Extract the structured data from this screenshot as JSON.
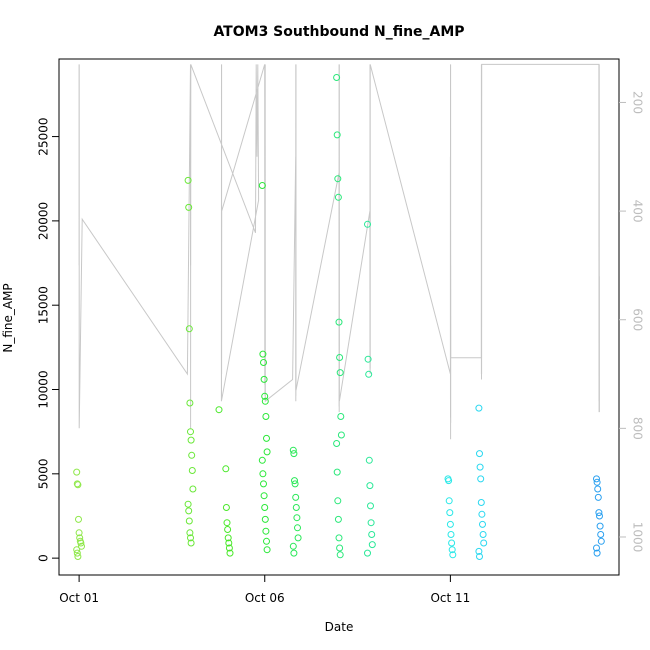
{
  "chart_data": {
    "type": "scatter",
    "title": "ATOM3 Southbound N_fine_AMP",
    "xlabel": "Date",
    "ylabel": "N_fine_AMP",
    "xlim": [
      "2020-09-30T11:00",
      "2020-10-15T13:00"
    ],
    "ylim": [
      -1000,
      29600
    ],
    "x_ticks": [
      {
        "at": "2020-10-01T00:00",
        "label": "Oct 01"
      },
      {
        "at": "2020-10-06T00:00",
        "label": "Oct 06"
      },
      {
        "at": "2020-10-11T00:00",
        "label": "Oct 11"
      }
    ],
    "y_ticks": [
      0,
      5000,
      10000,
      15000,
      20000,
      25000
    ],
    "y2_ticks": [
      200,
      400,
      600,
      800,
      1000
    ],
    "y2lim": [
      120,
      1070
    ],
    "y2_reversed": true,
    "grid": false,
    "legend": "none",
    "series": [
      {
        "color": "#c8c8c8",
        "kind": "line",
        "axis": "secondary",
        "note": "grey trace plotted against the right axis",
        "points": [
          [
            "2020-10-01T00:00",
            130
          ],
          [
            "2020-10-01T00:01",
            500
          ],
          [
            "2020-10-01T00:02",
            130
          ],
          [
            "2020-10-01T00:03",
            800
          ],
          [
            "2020-10-01T00:04",
            130
          ],
          [
            "2020-10-01T00:05",
            800
          ],
          [
            "2020-10-01T02:00",
            415
          ],
          [
            "2020-10-03T22:00",
            700
          ],
          [
            "2020-10-04T00:00",
            130
          ],
          [
            "2020-10-04T00:02",
            500
          ],
          [
            "2020-10-04T00:04",
            130
          ],
          [
            "2020-10-04T00:06",
            800
          ],
          [
            "2020-10-04T00:08",
            150
          ],
          [
            "2020-10-04T00:10",
            500
          ],
          [
            "2020-10-04T00:12",
            130
          ],
          [
            "2020-10-05T18:00",
            440
          ],
          [
            "2020-10-05T18:30",
            130
          ],
          [
            "2020-10-05T19:00",
            300
          ],
          [
            "2020-10-05T19:30",
            130
          ],
          [
            "2020-10-05T20:00",
            380
          ],
          [
            "2020-10-04T20:00",
            750
          ],
          [
            "2020-10-04T20:02",
            130
          ],
          [
            "2020-10-04T20:04",
            750
          ],
          [
            "2020-10-04T20:06",
            130
          ],
          [
            "2020-10-04T20:08",
            700
          ],
          [
            "2020-10-04T20:10",
            400
          ],
          [
            "2020-10-06T00:00",
            130
          ],
          [
            "2020-10-06T00:03",
            720
          ],
          [
            "2020-10-06T00:06",
            130
          ],
          [
            "2020-10-06T00:09",
            740
          ],
          [
            "2020-10-06T00:12",
            130
          ],
          [
            "2020-10-06T00:15",
            700
          ],
          [
            "2020-10-06T00:18",
            130
          ],
          [
            "2020-10-06T00:21",
            750
          ],
          [
            "2020-10-06T18:00",
            710
          ],
          [
            "2020-10-06T20:00",
            300
          ],
          [
            "2020-10-06T20:02",
            730
          ],
          [
            "2020-10-06T20:04",
            130
          ],
          [
            "2020-10-06T20:06",
            750
          ],
          [
            "2020-10-06T20:08",
            130
          ],
          [
            "2020-10-06T20:10",
            740
          ],
          [
            "2020-10-06T20:12",
            130
          ],
          [
            "2020-10-06T20:14",
            730
          ],
          [
            "2020-10-08T00:00",
            330
          ],
          [
            "2020-10-08T00:02",
            760
          ],
          [
            "2020-10-08T00:04",
            130
          ],
          [
            "2020-10-08T00:06",
            770
          ],
          [
            "2020-10-08T00:08",
            130
          ],
          [
            "2020-10-08T00:10",
            740
          ],
          [
            "2020-10-08T00:12",
            130
          ],
          [
            "2020-10-08T00:14",
            750
          ],
          [
            "2020-10-08T20:00",
            400
          ],
          [
            "2020-10-08T20:02",
            690
          ],
          [
            "2020-10-08T20:04",
            130
          ],
          [
            "2020-10-08T20:06",
            700
          ],
          [
            "2020-10-08T20:08",
            130
          ],
          [
            "2020-10-08T20:10",
            690
          ],
          [
            "2020-10-08T20:12",
            130
          ],
          [
            "2020-10-11T00:00",
            700
          ],
          [
            "2020-10-11T00:02",
            300
          ],
          [
            "2020-10-11T00:04",
            780
          ],
          [
            "2020-10-11T00:06",
            130
          ],
          [
            "2020-10-11T00:08",
            820
          ],
          [
            "2020-10-11T00:10",
            130
          ],
          [
            "2020-10-11T00:12",
            790
          ],
          [
            "2020-10-11T00:14",
            500
          ],
          [
            "2020-10-11T00:16",
            670
          ],
          [
            "2020-10-11T20:00",
            670
          ],
          [
            "2020-10-11T20:02",
            130
          ],
          [
            "2020-10-11T20:04",
            700
          ],
          [
            "2020-10-11T20:06",
            130
          ],
          [
            "2020-10-11T20:08",
            710
          ],
          [
            "2020-10-11T20:10",
            130
          ],
          [
            "2020-10-11T20:12",
            700
          ],
          [
            "2020-10-11T20:14",
            130
          ],
          [
            "2020-10-15T00:00",
            130
          ],
          [
            "2020-10-15T00:03",
            750
          ],
          [
            "2020-10-15T00:06",
            130
          ],
          [
            "2020-10-15T00:09",
            770
          ],
          [
            "2020-10-15T00:12",
            130
          ],
          [
            "2020-10-15T00:15",
            770
          ],
          [
            "2020-10-15T00:18",
            520
          ],
          [
            "2020-10-15T00:21",
            770
          ]
        ]
      },
      {
        "color": "#8fe84a",
        "kind": "points",
        "points": [
          [
            "2020-10-01T00:00",
            5100
          ],
          [
            "2020-10-01T00:00",
            4400
          ],
          [
            "2020-10-01T00:00",
            4350
          ],
          [
            "2020-10-01T00:00",
            2300
          ],
          [
            "2020-10-01T00:00",
            1500
          ],
          [
            "2020-10-01T00:00",
            1200
          ],
          [
            "2020-10-01T00:00",
            1000
          ],
          [
            "2020-10-01T00:00",
            900
          ],
          [
            "2020-10-01T00:00",
            700
          ],
          [
            "2020-10-01T00:00",
            500
          ],
          [
            "2020-10-01T00:00",
            300
          ],
          [
            "2020-10-01T00:00",
            100
          ]
        ]
      },
      {
        "color": "#6ae838",
        "kind": "points",
        "points": [
          [
            "2020-10-04T00:00",
            22400
          ],
          [
            "2020-10-04T00:00",
            20800
          ],
          [
            "2020-10-04T00:00",
            13600
          ],
          [
            "2020-10-04T00:00",
            9200
          ],
          [
            "2020-10-04T00:00",
            7500
          ],
          [
            "2020-10-04T00:00",
            7000
          ],
          [
            "2020-10-04T00:00",
            6100
          ],
          [
            "2020-10-04T00:00",
            5200
          ],
          [
            "2020-10-04T00:00",
            4100
          ],
          [
            "2020-10-04T00:00",
            3200
          ],
          [
            "2020-10-04T00:00",
            2800
          ],
          [
            "2020-10-04T00:00",
            2200
          ],
          [
            "2020-10-04T00:00",
            1500
          ],
          [
            "2020-10-04T00:00",
            1200
          ],
          [
            "2020-10-04T00:00",
            900
          ]
        ]
      },
      {
        "color": "#4ae82a",
        "kind": "points",
        "points": [
          [
            "2020-10-04T20:00",
            8800
          ],
          [
            "2020-10-05T00:00",
            5300
          ],
          [
            "2020-10-05T00:00",
            3000
          ],
          [
            "2020-10-05T00:00",
            2100
          ],
          [
            "2020-10-05T00:00",
            1700
          ],
          [
            "2020-10-05T00:00",
            1200
          ],
          [
            "2020-10-05T00:00",
            900
          ],
          [
            "2020-10-05T00:00",
            600
          ],
          [
            "2020-10-05T00:00",
            300
          ]
        ]
      },
      {
        "color": "#2ae838",
        "kind": "points",
        "points": [
          [
            "2020-10-06T00:00",
            22100
          ],
          [
            "2020-10-06T00:00",
            12100
          ],
          [
            "2020-10-06T00:00",
            11600
          ],
          [
            "2020-10-06T00:00",
            10600
          ],
          [
            "2020-10-06T00:00",
            9600
          ],
          [
            "2020-10-06T00:00",
            9300
          ],
          [
            "2020-10-06T00:00",
            8400
          ],
          [
            "2020-10-06T00:00",
            7100
          ],
          [
            "2020-10-06T00:00",
            6300
          ],
          [
            "2020-10-06T00:00",
            5800
          ],
          [
            "2020-10-06T00:00",
            5000
          ],
          [
            "2020-10-06T00:00",
            4400
          ],
          [
            "2020-10-06T00:00",
            3700
          ],
          [
            "2020-10-06T00:00",
            3000
          ],
          [
            "2020-10-06T00:00",
            2300
          ],
          [
            "2020-10-06T00:00",
            1600
          ],
          [
            "2020-10-06T00:00",
            1000
          ],
          [
            "2020-10-06T00:00",
            500
          ]
        ]
      },
      {
        "color": "#2ae858",
        "kind": "points",
        "points": [
          [
            "2020-10-06T20:00",
            6400
          ],
          [
            "2020-10-06T20:00",
            6200
          ],
          [
            "2020-10-06T20:00",
            4600
          ],
          [
            "2020-10-06T20:00",
            4400
          ],
          [
            "2020-10-06T20:00",
            3600
          ],
          [
            "2020-10-06T20:00",
            3000
          ],
          [
            "2020-10-06T20:00",
            2400
          ],
          [
            "2020-10-06T20:00",
            1800
          ],
          [
            "2020-10-06T20:00",
            1200
          ],
          [
            "2020-10-06T20:00",
            700
          ],
          [
            "2020-10-06T20:00",
            300
          ]
        ]
      },
      {
        "color": "#2ae87a",
        "kind": "points",
        "points": [
          [
            "2020-10-08T00:00",
            28500
          ],
          [
            "2020-10-08T00:00",
            25100
          ],
          [
            "2020-10-08T00:00",
            22500
          ],
          [
            "2020-10-08T00:00",
            21400
          ],
          [
            "2020-10-08T00:00",
            14000
          ],
          [
            "2020-10-08T00:00",
            11900
          ],
          [
            "2020-10-08T00:00",
            11000
          ],
          [
            "2020-10-08T00:00",
            8400
          ],
          [
            "2020-10-08T00:00",
            7300
          ],
          [
            "2020-10-08T00:00",
            6800
          ],
          [
            "2020-10-08T00:00",
            5100
          ],
          [
            "2020-10-08T00:00",
            3400
          ],
          [
            "2020-10-08T00:00",
            2300
          ],
          [
            "2020-10-08T00:00",
            1200
          ],
          [
            "2020-10-08T00:00",
            600
          ],
          [
            "2020-10-08T00:00",
            200
          ]
        ]
      },
      {
        "color": "#2ae898",
        "kind": "points",
        "points": [
          [
            "2020-10-08T20:00",
            19800
          ],
          [
            "2020-10-08T20:00",
            11800
          ],
          [
            "2020-10-08T20:00",
            10900
          ],
          [
            "2020-10-08T20:00",
            5800
          ],
          [
            "2020-10-08T20:00",
            4300
          ],
          [
            "2020-10-08T20:00",
            3100
          ],
          [
            "2020-10-08T20:00",
            2100
          ],
          [
            "2020-10-08T20:00",
            1400
          ],
          [
            "2020-10-08T20:00",
            800
          ],
          [
            "2020-10-08T20:00",
            300
          ]
        ]
      },
      {
        "color": "#2ae8e8",
        "kind": "points",
        "points": [
          [
            "2020-10-11T00:00",
            4700
          ],
          [
            "2020-10-11T00:00",
            4600
          ],
          [
            "2020-10-11T00:00",
            3400
          ],
          [
            "2020-10-11T00:00",
            2700
          ],
          [
            "2020-10-11T00:00",
            2000
          ],
          [
            "2020-10-11T00:00",
            1400
          ],
          [
            "2020-10-11T00:00",
            900
          ],
          [
            "2020-10-11T00:00",
            500
          ],
          [
            "2020-10-11T00:00",
            200
          ]
        ]
      },
      {
        "color": "#2ad8f0",
        "kind": "points",
        "points": [
          [
            "2020-10-11T20:00",
            8900
          ],
          [
            "2020-10-11T20:00",
            6200
          ],
          [
            "2020-10-11T20:00",
            5400
          ],
          [
            "2020-10-11T20:00",
            4700
          ],
          [
            "2020-10-11T20:00",
            3300
          ],
          [
            "2020-10-11T20:00",
            2600
          ],
          [
            "2020-10-11T20:00",
            2000
          ],
          [
            "2020-10-11T20:00",
            1400
          ],
          [
            "2020-10-11T20:00",
            900
          ],
          [
            "2020-10-11T20:00",
            400
          ],
          [
            "2020-10-11T20:00",
            100
          ]
        ]
      },
      {
        "color": "#2aa0f0",
        "kind": "points",
        "points": [
          [
            "2020-10-15T00:00",
            4700
          ],
          [
            "2020-10-15T00:00",
            4500
          ],
          [
            "2020-10-15T00:00",
            4100
          ],
          [
            "2020-10-15T00:00",
            3600
          ],
          [
            "2020-10-15T00:00",
            2700
          ],
          [
            "2020-10-15T00:00",
            2500
          ],
          [
            "2020-10-15T00:00",
            1900
          ],
          [
            "2020-10-15T00:00",
            1400
          ],
          [
            "2020-10-15T00:00",
            1000
          ],
          [
            "2020-10-15T00:00",
            600
          ],
          [
            "2020-10-15T00:00",
            300
          ]
        ]
      }
    ]
  }
}
